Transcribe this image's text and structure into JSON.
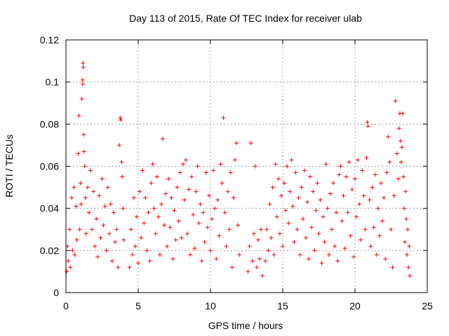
{
  "chart_data": {
    "type": "scatter",
    "title": "Day 113 of 2015, Rate Of TEC Index for receiver ulab",
    "xlabel": "GPS time / hours",
    "ylabel": "ROTI / TECUs",
    "xlim": [
      0,
      25
    ],
    "ylim": [
      0,
      0.12
    ],
    "xticks": [
      0,
      5,
      10,
      15,
      20,
      25
    ],
    "xtick_labels": [
      "0",
      "5",
      "10",
      "15",
      "20",
      "25"
    ],
    "yticks": [
      0,
      0.02,
      0.04,
      0.06,
      0.08,
      0.1,
      0.12
    ],
    "ytick_labels": [
      "0",
      "0.02",
      "0.04",
      "0.06",
      "0.08",
      "0.1",
      "0.12"
    ],
    "grid": true,
    "marker": "+",
    "color": "#ff0000",
    "series": [
      {
        "points": [
          [
            0.05,
            0.01
          ],
          [
            0.1,
            0.022
          ],
          [
            0.15,
            0.015
          ],
          [
            0.25,
            0.03
          ],
          [
            0.3,
            0.012
          ],
          [
            0.4,
            0.045
          ],
          [
            0.45,
            0.02
          ],
          [
            0.55,
            0.05
          ],
          [
            0.6,
            0.018
          ],
          [
            0.7,
            0.041
          ],
          [
            0.75,
            0.025
          ],
          [
            0.85,
            0.066
          ],
          [
            0.9,
            0.084
          ],
          [
            0.95,
            0.03
          ],
          [
            1.0,
            0.052
          ],
          [
            1.05,
            0.042
          ],
          [
            1.1,
            0.092
          ],
          [
            1.15,
            0.101
          ],
          [
            1.15,
            0.099
          ],
          [
            1.18,
            0.109
          ],
          [
            1.2,
            0.107
          ],
          [
            1.22,
            0.075
          ],
          [
            1.25,
            0.067
          ],
          [
            1.3,
            0.06
          ],
          [
            1.35,
            0.045
          ],
          [
            1.4,
            0.028
          ],
          [
            1.5,
            0.05
          ],
          [
            1.6,
            0.038
          ],
          [
            1.7,
            0.058
          ],
          [
            1.8,
            0.03
          ],
          [
            1.9,
            0.048
          ],
          [
            2.0,
            0.022
          ],
          [
            2.1,
            0.035
          ],
          [
            2.2,
            0.017
          ],
          [
            2.3,
            0.046
          ],
          [
            2.4,
            0.026
          ],
          [
            2.5,
            0.054
          ],
          [
            2.6,
            0.032
          ],
          [
            2.7,
            0.041
          ],
          [
            2.8,
            0.02
          ],
          [
            2.9,
            0.05
          ],
          [
            3.0,
            0.028
          ],
          [
            3.1,
            0.042
          ],
          [
            3.2,
            0.015
          ],
          [
            3.3,
            0.038
          ],
          [
            3.4,
            0.024
          ],
          [
            3.5,
            0.03
          ],
          [
            3.6,
            0.012
          ],
          [
            3.7,
            0.07
          ],
          [
            3.75,
            0.083
          ],
          [
            3.8,
            0.082
          ],
          [
            3.85,
            0.062
          ],
          [
            3.9,
            0.055
          ],
          [
            3.95,
            0.04
          ],
          [
            4.0,
            0.025
          ],
          [
            4.4,
            0.012
          ],
          [
            4.5,
            0.03
          ],
          [
            4.6,
            0.018
          ],
          [
            4.7,
            0.045
          ],
          [
            4.8,
            0.022
          ],
          [
            4.9,
            0.036
          ],
          [
            5.0,
            0.014
          ],
          [
            5.1,
            0.048
          ],
          [
            5.2,
            0.026
          ],
          [
            5.3,
            0.058
          ],
          [
            5.4,
            0.033
          ],
          [
            5.5,
            0.045
          ],
          [
            5.6,
            0.02
          ],
          [
            5.7,
            0.038
          ],
          [
            5.8,
            0.015
          ],
          [
            5.9,
            0.052
          ],
          [
            6.0,
            0.061
          ],
          [
            6.1,
            0.04
          ],
          [
            6.2,
            0.028
          ],
          [
            6.3,
            0.055
          ],
          [
            6.4,
            0.036
          ],
          [
            6.5,
            0.018
          ],
          [
            6.6,
            0.042
          ],
          [
            6.7,
            0.073
          ],
          [
            6.8,
            0.032
          ],
          [
            6.9,
            0.047
          ],
          [
            7.0,
            0.022
          ],
          [
            7.1,
            0.054
          ],
          [
            7.2,
            0.031
          ],
          [
            7.3,
            0.045
          ],
          [
            7.4,
            0.016
          ],
          [
            7.5,
            0.039
          ],
          [
            7.6,
            0.025
          ],
          [
            7.7,
            0.05
          ],
          [
            7.8,
            0.034
          ],
          [
            7.9,
            0.057
          ],
          [
            8.0,
            0.026
          ],
          [
            8.1,
            0.061
          ],
          [
            8.2,
            0.044
          ],
          [
            8.3,
            0.063
          ],
          [
            8.4,
            0.028
          ],
          [
            8.5,
            0.049
          ],
          [
            8.6,
            0.018
          ],
          [
            8.7,
            0.055
          ],
          [
            8.8,
            0.037
          ],
          [
            8.9,
            0.021
          ],
          [
            9.0,
            0.048
          ],
          [
            9.1,
            0.06
          ],
          [
            9.2,
            0.033
          ],
          [
            9.3,
            0.042
          ],
          [
            9.4,
            0.015
          ],
          [
            9.5,
            0.038
          ],
          [
            9.6,
            0.024
          ],
          [
            9.7,
            0.057
          ],
          [
            9.8,
            0.031
          ],
          [
            9.9,
            0.046
          ],
          [
            10.0,
            0.02
          ],
          [
            10.1,
            0.035
          ],
          [
            10.2,
            0.058
          ],
          [
            10.3,
            0.04
          ],
          [
            10.4,
            0.016
          ],
          [
            10.5,
            0.044
          ],
          [
            10.6,
            0.027
          ],
          [
            10.7,
            0.061
          ],
          [
            10.8,
            0.052
          ],
          [
            10.9,
            0.083
          ],
          [
            11.0,
            0.038
          ],
          [
            11.1,
            0.022
          ],
          [
            11.2,
            0.048
          ],
          [
            11.3,
            0.03
          ],
          [
            11.4,
            0.057
          ],
          [
            11.5,
            0.012
          ],
          [
            11.6,
            0.045
          ],
          [
            11.7,
            0.063
          ],
          [
            11.8,
            0.071
          ],
          [
            11.9,
            0.032
          ],
          [
            12.0,
            0.018
          ],
          [
            12.6,
            0.01
          ],
          [
            12.7,
            0.022
          ],
          [
            12.8,
            0.071
          ],
          [
            12.9,
            0.015
          ],
          [
            13.0,
            0.028
          ],
          [
            13.1,
            0.06
          ],
          [
            13.2,
            0.012
          ],
          [
            13.3,
            0.025
          ],
          [
            13.4,
            0.016
          ],
          [
            13.5,
            0.03
          ],
          [
            13.6,
            0.008
          ],
          [
            13.8,
            0.015
          ],
          [
            13.9,
            0.03
          ],
          [
            14.0,
            0.02
          ],
          [
            14.1,
            0.042
          ],
          [
            14.2,
            0.026
          ],
          [
            14.3,
            0.05
          ],
          [
            14.4,
            0.018
          ],
          [
            14.5,
            0.061
          ],
          [
            14.6,
            0.036
          ],
          [
            14.7,
            0.054
          ],
          [
            14.8,
            0.028
          ],
          [
            14.9,
            0.046
          ],
          [
            15.0,
            0.022
          ],
          [
            15.1,
            0.052
          ],
          [
            15.2,
            0.039
          ],
          [
            15.3,
            0.06
          ],
          [
            15.4,
            0.033
          ],
          [
            15.5,
            0.048
          ],
          [
            15.6,
            0.063
          ],
          [
            15.7,
            0.041
          ],
          [
            15.8,
            0.024
          ],
          [
            15.9,
            0.057
          ],
          [
            16.0,
            0.03
          ],
          [
            16.1,
            0.045
          ],
          [
            16.2,
            0.018
          ],
          [
            16.3,
            0.05
          ],
          [
            16.4,
            0.035
          ],
          [
            16.5,
            0.058
          ],
          [
            16.6,
            0.026
          ],
          [
            16.7,
            0.043
          ],
          [
            16.8,
            0.016
          ],
          [
            16.9,
            0.055
          ],
          [
            17.0,
            0.031
          ],
          [
            17.1,
            0.048
          ],
          [
            17.2,
            0.02
          ],
          [
            17.3,
            0.039
          ],
          [
            17.4,
            0.052
          ],
          [
            17.5,
            0.028
          ],
          [
            17.6,
            0.044
          ],
          [
            17.7,
            0.014
          ],
          [
            17.8,
            0.036
          ],
          [
            17.9,
            0.024
          ],
          [
            18.0,
            0.061
          ],
          [
            18.1,
            0.04
          ],
          [
            18.2,
            0.018
          ],
          [
            18.3,
            0.047
          ],
          [
            18.4,
            0.03
          ],
          [
            18.5,
            0.052
          ],
          [
            18.6,
            0.022
          ],
          [
            18.7,
            0.038
          ],
          [
            18.8,
            0.015
          ],
          [
            18.9,
            0.056
          ],
          [
            19.0,
            0.06
          ],
          [
            19.1,
            0.034
          ],
          [
            19.2,
            0.046
          ],
          [
            19.3,
            0.021
          ],
          [
            19.4,
            0.055
          ],
          [
            19.5,
            0.038
          ],
          [
            19.6,
            0.062
          ],
          [
            19.7,
            0.027
          ],
          [
            19.8,
            0.049
          ],
          [
            19.9,
            0.017
          ],
          [
            20.0,
            0.054
          ],
          [
            20.1,
            0.036
          ],
          [
            20.2,
            0.063
          ],
          [
            20.3,
            0.042
          ],
          [
            20.4,
            0.025
          ],
          [
            20.5,
            0.058
          ],
          [
            20.6,
            0.046
          ],
          [
            20.7,
            0.03
          ],
          [
            20.8,
            0.064
          ],
          [
            20.85,
            0.081
          ],
          [
            20.9,
            0.079
          ],
          [
            21.0,
            0.044
          ],
          [
            21.1,
            0.022
          ],
          [
            21.2,
            0.05
          ],
          [
            21.3,
            0.031
          ],
          [
            21.4,
            0.056
          ],
          [
            21.5,
            0.018
          ],
          [
            21.6,
            0.04
          ],
          [
            21.7,
            0.027
          ],
          [
            21.8,
            0.052
          ],
          [
            21.9,
            0.034
          ],
          [
            22.0,
            0.045
          ],
          [
            22.1,
            0.016
          ],
          [
            22.2,
            0.057
          ],
          [
            22.3,
            0.074
          ],
          [
            22.4,
            0.062
          ],
          [
            22.5,
            0.03
          ],
          [
            22.6,
            0.012
          ],
          [
            22.7,
            0.046
          ],
          [
            22.8,
            0.091
          ],
          [
            22.9,
            0.066
          ],
          [
            23.0,
            0.054
          ],
          [
            23.05,
            0.078
          ],
          [
            23.1,
            0.085
          ],
          [
            23.15,
            0.072
          ],
          [
            23.2,
            0.062
          ],
          [
            23.25,
            0.069
          ],
          [
            23.3,
            0.085
          ],
          [
            23.35,
            0.055
          ],
          [
            23.4,
            0.04
          ],
          [
            23.45,
            0.024
          ],
          [
            23.5,
            0.048
          ],
          [
            23.55,
            0.035
          ],
          [
            23.6,
            0.018
          ],
          [
            23.65,
            0.03
          ],
          [
            23.7,
            0.012
          ],
          [
            23.75,
            0.022
          ],
          [
            23.8,
            0.008
          ]
        ]
      }
    ]
  }
}
